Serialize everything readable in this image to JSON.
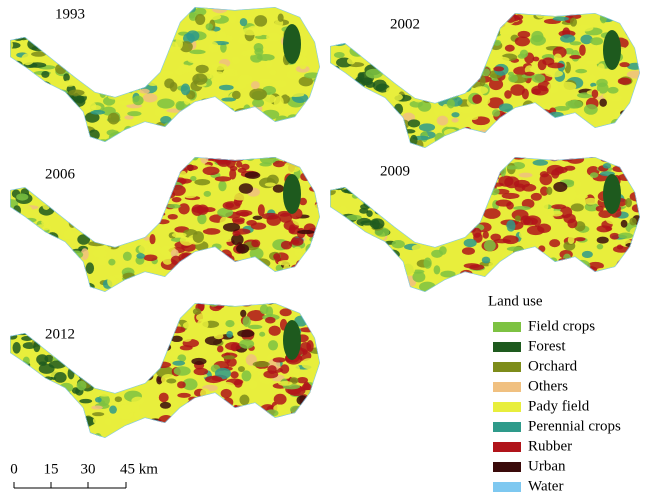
{
  "panels": [
    {
      "year": "1993"
    },
    {
      "year": "2002"
    },
    {
      "year": "2006"
    },
    {
      "year": "2009"
    },
    {
      "year": "2012"
    }
  ],
  "legend": {
    "title": "Land use",
    "items": [
      {
        "label": "Field crops",
        "color": "#7dc242"
      },
      {
        "label": "Forest",
        "color": "#1e5a1e"
      },
      {
        "label": "Orchard",
        "color": "#7d8c1a"
      },
      {
        "label": "Others",
        "color": "#f0c080"
      },
      {
        "label": "Pady field",
        "color": "#e8ee3c"
      },
      {
        "label": "Perennial crops",
        "color": "#2e9a8a"
      },
      {
        "label": "Rubber",
        "color": "#b0141a"
      },
      {
        "label": "Urban",
        "color": "#3a0a0a"
      },
      {
        "label": "Water",
        "color": "#7ec8f0"
      }
    ]
  },
  "scale_bar": {
    "labels": [
      "0",
      "15",
      "30",
      "45 km"
    ]
  }
}
